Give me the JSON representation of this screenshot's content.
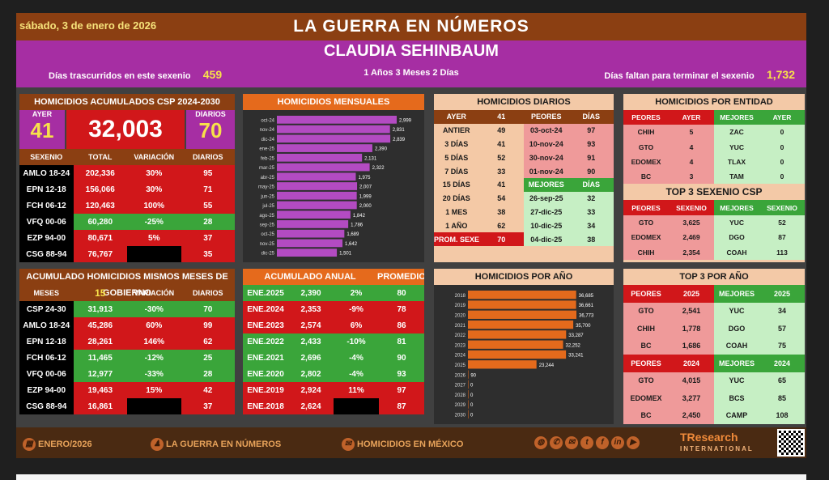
{
  "header": {
    "date": "sábado, 3 de enero de 2026",
    "title": "LA GUERRA EN NÚMEROS",
    "name": "CLAUDIA SEHINBAUM",
    "elapsed_label": "Días trascurridos en este sexenio",
    "elapsed_value": "459",
    "duration": "1 Años 3 Meses 2 Días",
    "remaining_label": "Días faltan para terminar el sexenio",
    "remaining_value": "1,732"
  },
  "acumulados": {
    "title": "HOMICIDIOS ACUMULADOS CSP 2024-2030",
    "ayer_label": "AYER",
    "ayer_value": "41",
    "total": "32,003",
    "diarios_label": "DIARIOS",
    "diarios_value": "70",
    "columns": [
      "SEXENIO",
      "TOTAL",
      "VARIACIÓN",
      "DIARIOS"
    ],
    "rows": [
      [
        "AMLO 18-24",
        "202,336",
        "30%",
        "95"
      ],
      [
        "EPN 12-18",
        "156,066",
        "30%",
        "71"
      ],
      [
        "FCH 06-12",
        "120,463",
        "100%",
        "55"
      ],
      [
        "VFQ 00-06",
        "60,280",
        "-25%",
        "28"
      ],
      [
        "EZP 94-00",
        "80,671",
        "5%",
        "37"
      ],
      [
        "CSG 88-94",
        "76,767",
        "",
        "35"
      ]
    ]
  },
  "mismos": {
    "title": "ACUMULADO HOMICIDIOS MISMOS MESES DE GOBIERNO",
    "columns": [
      "MESES",
      "15",
      "VARIACIÓN",
      "DIARIOS"
    ],
    "rows": [
      [
        "CSP 24-30",
        "31,913",
        "-30%",
        "70"
      ],
      [
        "AMLO 18-24",
        "45,286",
        "60%",
        "99"
      ],
      [
        "EPN 12-18",
        "28,261",
        "146%",
        "62"
      ],
      [
        "FCH 06-12",
        "11,465",
        "-12%",
        "25"
      ],
      [
        "VFQ 00-06",
        "12,977",
        "-33%",
        "28"
      ],
      [
        "EZP 94-00",
        "19,463",
        "15%",
        "42"
      ],
      [
        "CSG 88-94",
        "16,861",
        "",
        "37"
      ]
    ]
  },
  "mensuales": {
    "title": "HOMICIDIOS MENSUALES"
  },
  "anual": {
    "title": "ACUMULADO ANUAL",
    "promedio_label": "PROMEDIO",
    "rows": [
      [
        "ENE.2025",
        "2,390",
        "2%",
        "80"
      ],
      [
        "ENE.2024",
        "2,353",
        "-9%",
        "78"
      ],
      [
        "ENE.2023",
        "2,574",
        "6%",
        "86"
      ],
      [
        "ENE.2022",
        "2,433",
        "-10%",
        "81"
      ],
      [
        "ENE.2021",
        "2,696",
        "-4%",
        "90"
      ],
      [
        "ENE.2020",
        "2,802",
        "-4%",
        "93"
      ],
      [
        "ENE.2019",
        "2,924",
        "11%",
        "97"
      ],
      [
        "ENE.2018",
        "2,624",
        "",
        "87"
      ]
    ]
  },
  "diarios": {
    "title": "HOMICIDIOS DIARIOS",
    "head": [
      "AYER",
      "41",
      "PEORES",
      "DÍAS"
    ],
    "rows": [
      [
        "ANTIER",
        "49",
        "03-oct-24",
        "97"
      ],
      [
        "3 DÍAS",
        "41",
        "10-nov-24",
        "93"
      ],
      [
        "5 DÍAS",
        "52",
        "30-nov-24",
        "91"
      ],
      [
        "7 DÍAS",
        "33",
        "01-nov-24",
        "90"
      ]
    ],
    "mejores_head": [
      "15 DÍAS",
      "41",
      "MEJORES",
      "DÍAS"
    ],
    "rows2": [
      [
        "20 DÍAS",
        "54",
        "26-sep-25",
        "32"
      ],
      [
        "1 MES",
        "38",
        "27-dic-25",
        "33"
      ],
      [
        "1 AÑO",
        "62",
        "10-dic-25",
        "34"
      ],
      [
        "PROM. SEXENIO",
        "70",
        "04-dic-25",
        "38"
      ]
    ]
  },
  "por_anio": {
    "title": "HOMICIDIOS POR AÑO"
  },
  "entidad": {
    "title": "HOMICIDIOS POR ENTIDAD",
    "columns": [
      "PEORES",
      "AYER",
      "MEJORES",
      "AYER"
    ],
    "rows": [
      [
        "CHIH",
        "5",
        "ZAC",
        "0"
      ],
      [
        "GTO",
        "4",
        "YUC",
        "0"
      ],
      [
        "EDOMEX",
        "4",
        "TLAX",
        "0"
      ],
      [
        "BC",
        "3",
        "TAM",
        "0"
      ]
    ],
    "top3_title": "TOP 3 SEXENIO CSP",
    "top3_columns": [
      "PEORES",
      "SEXENIO",
      "MEJORES",
      "SEXENIO"
    ],
    "top3_rows": [
      [
        "GTO",
        "3,625",
        "YUC",
        "52"
      ],
      [
        "EDOMEX",
        "2,469",
        "DGO",
        "87"
      ],
      [
        "CHIH",
        "2,354",
        "COAH",
        "113"
      ]
    ]
  },
  "top3anio": {
    "title": "TOP 3 POR AÑO",
    "columns_a": [
      "PEORES",
      "2025",
      "MEJORES",
      "2025"
    ],
    "rows_a": [
      [
        "GTO",
        "2,541",
        "YUC",
        "34"
      ],
      [
        "CHIH",
        "1,778",
        "DGO",
        "57"
      ],
      [
        "BC",
        "1,686",
        "COAH",
        "75"
      ]
    ],
    "columns_b": [
      "PEORES",
      "2024",
      "MEJORES",
      "2024"
    ],
    "rows_b": [
      [
        "GTO",
        "4,015",
        "YUC",
        "65"
      ],
      [
        "EDOMEX",
        "3,277",
        "BCS",
        "85"
      ],
      [
        "BC",
        "2,450",
        "CAMP",
        "108"
      ]
    ]
  },
  "footer": {
    "f1": "ENERO/2026",
    "f2": "LA GUERRA EN NÚMEROS",
    "f3": "HOMICIDIOS EN MÉXICO",
    "brand": "TResearch",
    "brand_sub": "INTERNATIONAL"
  },
  "chart_data": [
    {
      "type": "bar",
      "orientation": "horizontal",
      "title": "HOMICIDIOS MENSUALES",
      "categories": [
        "oct-24",
        "nov-24",
        "dic-24",
        "ene-25",
        "feb-25",
        "mar-25",
        "abr-25",
        "may-25",
        "jun-25",
        "jul-25",
        "ago-25",
        "sep-25",
        "oct-25",
        "nov-25",
        "dic-25"
      ],
      "values": [
        2999,
        2831,
        2839,
        2390,
        2131,
        2322,
        1975,
        2007,
        1999,
        2000,
        1842,
        1786,
        1689,
        1642,
        1501
      ],
      "labels": [
        "2,999",
        "2,831",
        "2,839",
        "2,390",
        "2,131",
        "2,322",
        "1,975",
        "2,007",
        "1,999",
        "2,000",
        "1,842",
        "1,786",
        "1,689",
        "1,642",
        "1,501"
      ],
      "color": "#b34bc2"
    },
    {
      "type": "bar",
      "orientation": "horizontal",
      "title": "HOMICIDIOS POR AÑO",
      "categories": [
        "2018",
        "2019",
        "2020",
        "2021",
        "2022",
        "2023",
        "2024",
        "2025",
        "2026",
        "2027",
        "2028",
        "2029",
        "2030"
      ],
      "values": [
        36685,
        36661,
        36773,
        35700,
        33287,
        32252,
        33241,
        23244,
        90,
        0,
        0,
        0,
        0
      ],
      "labels": [
        "36,685",
        "36,661",
        "36,773",
        "35,700",
        "33,287",
        "32,252",
        "33,241",
        "23,244",
        "90",
        "0",
        "0",
        "0",
        "0"
      ],
      "color": "#e46a1c"
    }
  ]
}
